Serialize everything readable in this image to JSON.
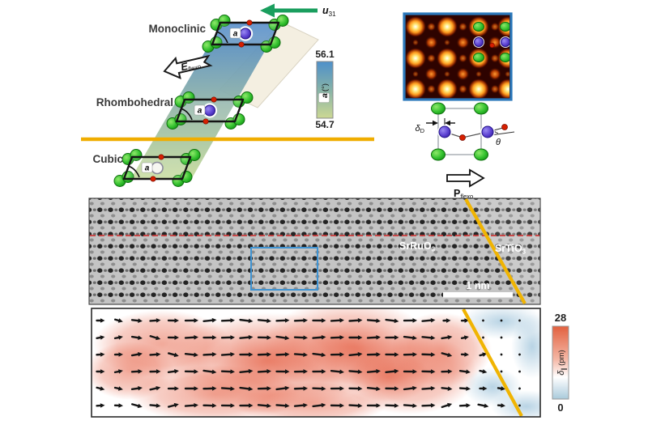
{
  "figure": {
    "phase_diagram": {
      "monoclinic": "Monoclinic",
      "rhombohedral": "Rhombohedral",
      "cubic": "Cubic",
      "strain_symbol": "u",
      "strain_subscript": "31",
      "field_symbol": "E",
      "field_subscript": "flexo",
      "cell_angle_symbol": "a",
      "colorbar": {
        "max": "56.1",
        "min": "54.7",
        "symbol": "a",
        "unit": "(°)",
        "top_color": "#4e90cb",
        "bottom_color": "#ccd893"
      }
    },
    "schematic": {
      "delta_symbol": "δ",
      "delta_subscript": "D",
      "theta_symbol": "θ",
      "polarization_symbol": "P",
      "polarization_subscript": "flexo"
    },
    "stem": {
      "film_base": "SrRuO",
      "film_subscript": "3",
      "substrate_base": "SrTiO",
      "substrate_subscript": "3",
      "scalebar": "1 nm"
    },
    "vector_map": {
      "colorbar_max": "28",
      "colorbar_min": "0",
      "colorbar_symbol": "δ",
      "colorbar_subscript": "∥",
      "colorbar_unit": "(pm)",
      "positive_color": "#e2613f",
      "negative_color": "#a9cadb"
    },
    "colors": {
      "interface_line": "#f0b402",
      "phase_line": "#f0ad00",
      "inset_border": "#2b78bb",
      "roi_box": "#3f93d2",
      "atom_green": "#2db82d",
      "atom_blue": "#5a3fd0",
      "atom_red": "#d61f00",
      "strain_arrow_green": "#1a9e5e",
      "stem_background": "#c4c4c4",
      "dashed_line_red": "#cc3b3b"
    }
  }
}
